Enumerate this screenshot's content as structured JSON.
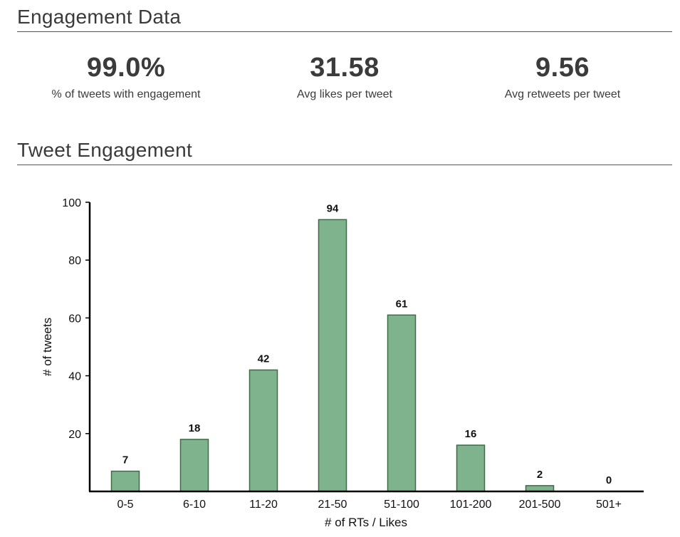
{
  "engagement_section": {
    "title": "Engagement Data"
  },
  "stats": [
    {
      "value": "99.0%",
      "label": "% of tweets with engagement"
    },
    {
      "value": "31.58",
      "label": "Avg likes per tweet"
    },
    {
      "value": "9.56",
      "label": "Avg retweets per tweet"
    }
  ],
  "tweet_section": {
    "title": "Tweet Engagement"
  },
  "colors": {
    "bar_fill": "#7fb38e",
    "bar_stroke": "#3d6b46",
    "axis": "#000000"
  },
  "chart_data": {
    "type": "bar",
    "title": "",
    "xlabel": "# of RTs / Likes",
    "ylabel": "# of tweets",
    "categories": [
      "0-5",
      "6-10",
      "11-20",
      "21-50",
      "51-100",
      "101-200",
      "201-500",
      "501+"
    ],
    "values": [
      7,
      18,
      42,
      94,
      61,
      16,
      2,
      0
    ],
    "ylim": [
      0,
      100
    ],
    "yticks": [
      20,
      40,
      60,
      80,
      100
    ],
    "data_labels": true,
    "grid": false
  }
}
